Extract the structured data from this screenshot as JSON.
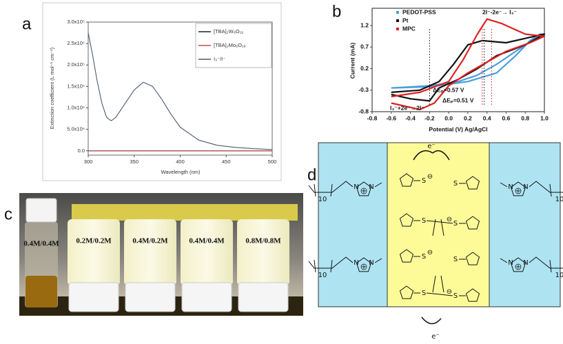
{
  "panel_labels": [
    "a",
    "b",
    "c",
    "d"
  ],
  "chart_data": [
    {
      "type": "line",
      "x_label": "Wavelength (nm)",
      "y_label": "Extinction coefficient (L mol⁻¹ cm⁻¹)",
      "x": [
        300,
        305,
        310,
        315,
        320,
        325,
        330,
        340,
        350,
        360,
        370,
        380,
        390,
        400,
        420,
        440,
        460,
        480,
        500
      ],
      "xlim": [
        300,
        500
      ],
      "xticks": [
        300,
        350,
        400,
        450,
        500
      ],
      "ylim": [
        -10000,
        300000
      ],
      "yticks": [
        {
          "value": 0,
          "label": "0.0"
        },
        {
          "value": 50000,
          "label": "5.0x10⁴"
        },
        {
          "value": 100000,
          "label": "1.0x10⁵"
        },
        {
          "value": 150000,
          "label": "1.5x10⁵"
        },
        {
          "value": 200000,
          "label": "2.0x10⁵"
        },
        {
          "value": 250000,
          "label": "2.5x10⁵"
        },
        {
          "value": 300000,
          "label": "3.0x10⁵"
        }
      ],
      "legend": "upper right",
      "series": [
        {
          "name": "[TBA]₂W₆O₁₉",
          "color": "#222222",
          "values": [
            0,
            0,
            0,
            0,
            0,
            0,
            0,
            0,
            0,
            0,
            0,
            0,
            0,
            0,
            0,
            0,
            0,
            0,
            0
          ]
        },
        {
          "name": "[TBA]₂Mo₆O₁₉",
          "color": "#c0504d",
          "values": [
            0,
            0,
            0,
            0,
            0,
            0,
            0,
            0,
            0,
            0,
            0,
            0,
            0,
            0,
            0,
            0,
            0,
            0,
            0
          ]
        },
        {
          "name": "I₃⁻/I⁻",
          "color": "#4a5a70",
          "values": [
            275000,
            220000,
            160000,
            110000,
            78000,
            70000,
            78000,
            110000,
            142000,
            160000,
            150000,
            120000,
            85000,
            55000,
            25000,
            13000,
            8000,
            5000,
            3000
          ]
        }
      ]
    },
    {
      "type": "line",
      "x_label": "Potential (V) Ag/AgCl",
      "y_label": "Current (mA)",
      "xlim": [
        -0.8,
        1.0
      ],
      "xticks": [
        -0.8,
        -0.6,
        -0.4,
        -0.2,
        {
          "value": 0,
          "label": "0.0"
        },
        0.2,
        0.4,
        0.6,
        0.8,
        {
          "value": 1,
          "label": "1.0"
        }
      ],
      "ylim": [
        -0.8,
        1.6
      ],
      "yticks": [
        -0.8,
        -0.3,
        0.2,
        0.7,
        1.2
      ],
      "legend": "upper left",
      "series": [
        {
          "name": "PEDOT-PSS",
          "color": "#4a9fdc",
          "x": [
            -0.6,
            -0.2,
            0.2,
            0.5,
            0.7,
            0.85,
            0.95,
            1.0,
            0.9,
            0.7,
            0.5,
            0.3,
            0.1,
            -0.2,
            -0.6
          ],
          "values": [
            -0.25,
            -0.22,
            -0.1,
            0.1,
            0.5,
            0.85,
            1.0,
            1.0,
            0.9,
            0.6,
            0.3,
            0.05,
            -0.1,
            -0.2,
            -0.25
          ]
        },
        {
          "name": "Pt",
          "color": "#111111",
          "x": [
            -0.6,
            -0.3,
            -0.1,
            0.05,
            0.2,
            0.35,
            0.6,
            0.9,
            1.0,
            0.8,
            0.5,
            0.3,
            0.1,
            -0.1,
            -0.2,
            -0.4,
            -0.6
          ],
          "values": [
            -0.35,
            -0.3,
            -0.1,
            0.3,
            0.75,
            0.85,
            0.8,
            0.95,
            1.0,
            0.75,
            0.5,
            0.2,
            -0.05,
            -0.25,
            -0.55,
            -0.5,
            -0.4
          ]
        },
        {
          "name": "MPC",
          "color": "#e02020",
          "x": [
            -0.6,
            -0.3,
            0.0,
            0.15,
            0.3,
            0.4,
            0.55,
            0.8,
            1.0,
            0.85,
            0.6,
            0.4,
            0.2,
            0.0,
            -0.15,
            -0.3,
            -0.6
          ],
          "values": [
            -0.45,
            -0.35,
            -0.1,
            0.4,
            1.0,
            1.35,
            1.25,
            1.0,
            0.95,
            0.8,
            0.6,
            0.35,
            0.1,
            -0.2,
            -0.6,
            -0.75,
            -0.6
          ]
        }
      ],
      "annotations": [
        {
          "text": "2I⁻-2e⁻→ I₃⁻",
          "color": "#4a9fdc"
        },
        {
          "text": "ΔEₚ=0.57 V",
          "color": "#111111"
        },
        {
          "text": "ΔEₚ=0.51 V",
          "color": "#111111"
        },
        {
          "text": "I₃⁻+2e⁻→2I⁻",
          "color": "#4a9fdc"
        }
      ]
    }
  ],
  "photo": {
    "vial_labels": [
      "0.4M/0.4M",
      "0.2M/0.2M",
      "0.4M/0.2M",
      "0.4M/0.4M",
      "0.8M/0.8M"
    ]
  },
  "diagram": {
    "electron_top": "e⁻",
    "electron_bottom": "e⁻",
    "chain_length": "10",
    "ring_atom": "N",
    "cation_charge": "+",
    "sulfur": "S",
    "anion_charge": "⊖"
  }
}
